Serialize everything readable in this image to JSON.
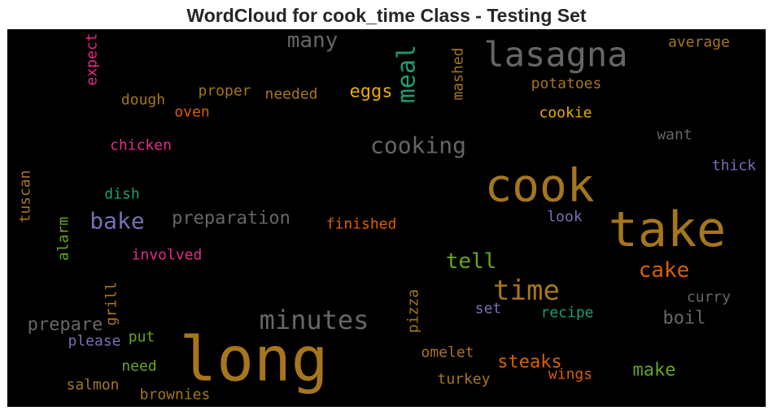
{
  "chart_data": {
    "type": "wordcloud",
    "title": "WordCloud for cook_time Class - Testing Set",
    "background": "#000000",
    "words": [
      {
        "text": "long",
        "color": "#a6761d"
      },
      {
        "text": "take",
        "color": "#a6761d"
      },
      {
        "text": "cook",
        "color": "#a6761d"
      },
      {
        "text": "lasagna",
        "color": "#666666"
      },
      {
        "text": "minutes",
        "color": "#666666"
      },
      {
        "text": "time",
        "color": "#a6761d"
      },
      {
        "text": "cooking",
        "color": "#666666"
      },
      {
        "text": "meal",
        "color": "#1b9e77"
      },
      {
        "text": "bake",
        "color": "#7570b3"
      },
      {
        "text": "preparation",
        "color": "#666666"
      },
      {
        "text": "many",
        "color": "#666666"
      },
      {
        "text": "cake",
        "color": "#d95f02"
      },
      {
        "text": "tell",
        "color": "#66a61e"
      },
      {
        "text": "eggs",
        "color": "#e6ab02"
      },
      {
        "text": "boil",
        "color": "#666666"
      },
      {
        "text": "make",
        "color": "#66a61e"
      },
      {
        "text": "prepare",
        "color": "#666666"
      },
      {
        "text": "steaks",
        "color": "#d95f02"
      },
      {
        "text": "average",
        "color": "#a6761d"
      },
      {
        "text": "potatoes",
        "color": "#a6761d"
      },
      {
        "text": "cookie",
        "color": "#e6ab02"
      },
      {
        "text": "want",
        "color": "#666666"
      },
      {
        "text": "thick",
        "color": "#7570b3"
      },
      {
        "text": "look",
        "color": "#7570b3"
      },
      {
        "text": "curry",
        "color": "#666666"
      },
      {
        "text": "recipe",
        "color": "#1b9e77"
      },
      {
        "text": "set",
        "color": "#7570b3"
      },
      {
        "text": "finished",
        "color": "#d95f02"
      },
      {
        "text": "involved",
        "color": "#e7298a"
      },
      {
        "text": "chicken",
        "color": "#e7298a"
      },
      {
        "text": "dish",
        "color": "#1b9e77"
      },
      {
        "text": "needed",
        "color": "#a6761d"
      },
      {
        "text": "proper",
        "color": "#a6761d"
      },
      {
        "text": "dough",
        "color": "#a6761d"
      },
      {
        "text": "oven",
        "color": "#d95f02"
      },
      {
        "text": "expect",
        "color": "#e7298a"
      },
      {
        "text": "mashed",
        "color": "#a6761d"
      },
      {
        "text": "tuscan",
        "color": "#a6761d"
      },
      {
        "text": "alarm",
        "color": "#66a61e"
      },
      {
        "text": "grill",
        "color": "#a6761d"
      },
      {
        "text": "pizza",
        "color": "#a6761d"
      },
      {
        "text": "please",
        "color": "#7570b3"
      },
      {
        "text": "put",
        "color": "#66a61e"
      },
      {
        "text": "need",
        "color": "#66a61e"
      },
      {
        "text": "salmon",
        "color": "#a6761d"
      },
      {
        "text": "brownies",
        "color": "#a6761d"
      },
      {
        "text": "omelet",
        "color": "#a6761d"
      },
      {
        "text": "turkey",
        "color": "#a6761d"
      },
      {
        "text": "wings",
        "color": "#d95f02"
      }
    ]
  }
}
